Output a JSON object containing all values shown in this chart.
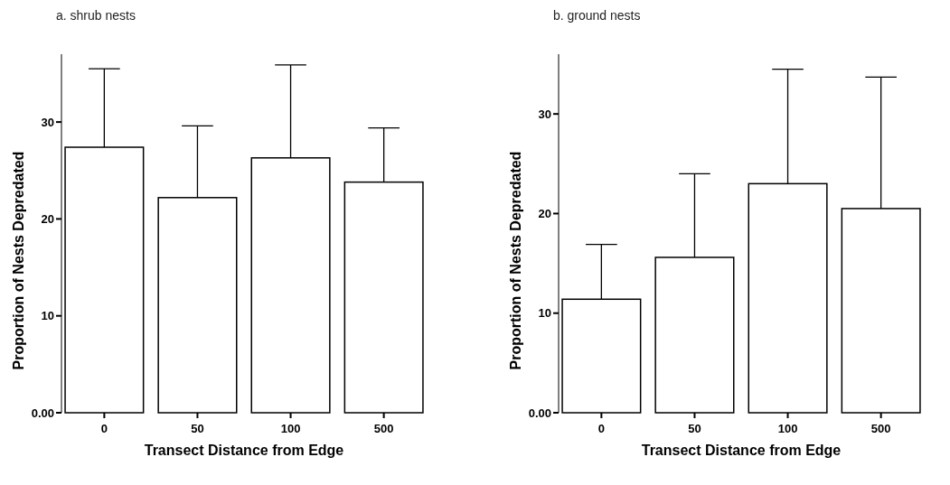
{
  "chart_data": [
    {
      "type": "bar",
      "title": "a. shrub nests",
      "xlabel": "Transect Distance from Edge",
      "ylabel": "Proportion of Nests Depredated",
      "categories": [
        "0",
        "50",
        "100",
        "500"
      ],
      "values": [
        27.4,
        22.2,
        26.3,
        23.8
      ],
      "errors": [
        [
          27.4,
          35.5
        ],
        [
          22.2,
          29.6
        ],
        [
          26.3,
          35.9
        ],
        [
          23.8,
          29.4
        ]
      ],
      "color": "#ffffff",
      "ylim": [
        0,
        37
      ],
      "yticks": [
        {
          "value": 0,
          "label": "0.00"
        },
        10,
        20,
        30
      ]
    },
    {
      "type": "bar",
      "title": "b. ground nests",
      "xlabel": "Transect Distance from Edge",
      "ylabel": "Proportion of Nests Depredated",
      "categories": [
        "0",
        "50",
        "100",
        "500"
      ],
      "values": [
        11.4,
        15.6,
        23.0,
        20.5
      ],
      "errors": [
        [
          11.4,
          16.9
        ],
        [
          15.6,
          24.0
        ],
        [
          23.0,
          34.5
        ],
        [
          20.5,
          33.7
        ]
      ],
      "color": "#ffffff",
      "ylim": [
        0,
        36
      ],
      "yticks": [
        {
          "value": 0,
          "label": "0.00"
        },
        10,
        20,
        30
      ]
    }
  ]
}
